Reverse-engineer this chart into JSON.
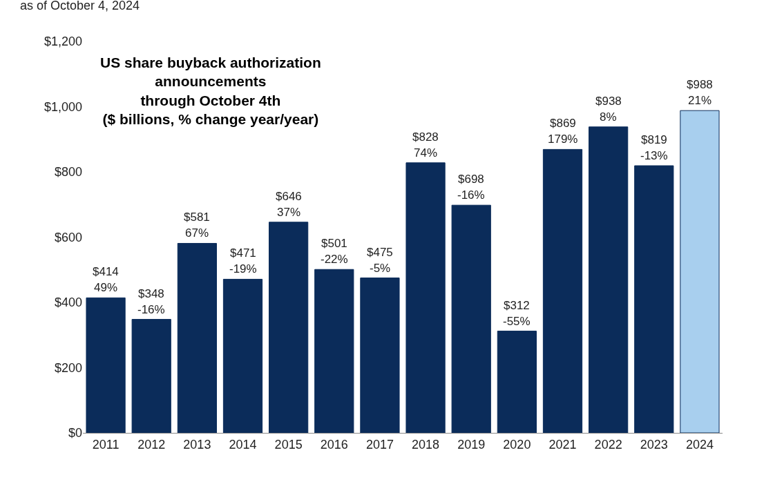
{
  "chart_data": {
    "type": "bar",
    "title": "US share buyback authorization\nannouncements\nthrough October 4th\n($ billions, % change year/year)",
    "subtitle": "as of October 4, 2024",
    "categories": [
      "2011",
      "2012",
      "2013",
      "2014",
      "2015",
      "2016",
      "2017",
      "2018",
      "2019",
      "2020",
      "2021",
      "2022",
      "2023",
      "2024"
    ],
    "values": [
      414,
      348,
      581,
      471,
      646,
      501,
      475,
      828,
      698,
      312,
      869,
      938,
      819,
      988
    ],
    "colors": [
      "#0b2c5a",
      "#0b2c5a",
      "#0b2c5a",
      "#0b2c5a",
      "#0b2c5a",
      "#0b2c5a",
      "#0b2c5a",
      "#0b2c5a",
      "#0b2c5a",
      "#0b2c5a",
      "#0b2c5a",
      "#0b2c5a",
      "#0b2c5a",
      "#a8cfee"
    ],
    "value_labels": [
      "$414",
      "$348",
      "$581",
      "$471",
      "$646",
      "$501",
      "$475",
      "$828",
      "$698",
      "$312",
      "$869",
      "$938",
      "$819",
      "$988"
    ],
    "annotations": [
      {
        "text": "49%",
        "x": "2011",
        "y": 414
      },
      {
        "text": "-16%",
        "x": "2012",
        "y": 348
      },
      {
        "text": "67%",
        "x": "2013",
        "y": 581
      },
      {
        "text": "-19%",
        "x": "2014",
        "y": 471
      },
      {
        "text": "37%",
        "x": "2015",
        "y": 646
      },
      {
        "text": "-22%",
        "x": "2016",
        "y": 501
      },
      {
        "text": "-5%",
        "x": "2017",
        "y": 475
      },
      {
        "text": "74%",
        "x": "2018",
        "y": 828
      },
      {
        "text": "-16%",
        "x": "2019",
        "y": 698
      },
      {
        "text": "-55%",
        "x": "2020",
        "y": 312
      },
      {
        "text": "179%",
        "x": "2021",
        "y": 869
      },
      {
        "text": "8%",
        "x": "2022",
        "y": 938
      },
      {
        "text": "-13%",
        "x": "2023",
        "y": 819
      },
      {
        "text": "21%",
        "x": "2024",
        "y": 988
      }
    ],
    "ylim": [
      0,
      1200
    ],
    "yticks": [
      {
        "value": 0,
        "label": "$0"
      },
      {
        "value": 200,
        "label": "$200"
      },
      {
        "value": 400,
        "label": "$400"
      },
      {
        "value": 600,
        "label": "$600"
      },
      {
        "value": 800,
        "label": "$800"
      },
      {
        "value": 1000,
        "label": "$1,000"
      },
      {
        "value": 1200,
        "label": "$1,200"
      }
    ]
  }
}
